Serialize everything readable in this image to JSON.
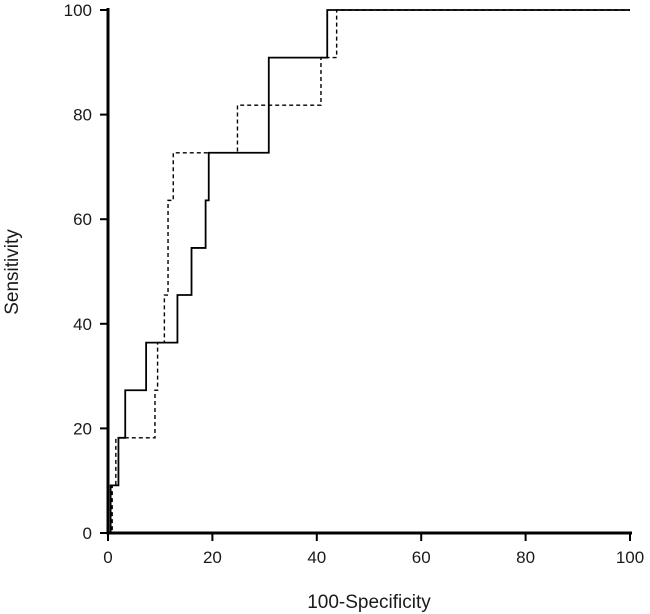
{
  "chart_data": {
    "type": "line",
    "title": "",
    "xlabel": "100-Specificity",
    "ylabel": "Sensitivity",
    "xlim": [
      0,
      100
    ],
    "ylim": [
      0,
      100
    ],
    "x_ticks": [
      "0",
      "20",
      "40",
      "60",
      "80",
      "100"
    ],
    "y_ticks": [
      "0",
      "20",
      "40",
      "60",
      "80",
      "100"
    ],
    "grid": false,
    "legend": "none",
    "series": [
      {
        "style": "solid",
        "color": "#000000",
        "x": [
          0,
          0.5,
          0.5,
          2,
          2,
          3.3,
          3.3,
          7.3,
          7.3,
          13.3,
          13.3,
          16,
          16,
          18.7,
          18.7,
          19.3,
          19.3,
          30.8,
          30.8,
          42,
          42,
          100
        ],
        "y": [
          0,
          0,
          9.1,
          9.1,
          18.2,
          18.2,
          27.3,
          27.3,
          36.4,
          36.4,
          45.5,
          45.5,
          54.5,
          54.5,
          63.6,
          63.6,
          72.7,
          72.7,
          90.9,
          90.9,
          100,
          100
        ]
      },
      {
        "style": "dashed",
        "color": "#000000",
        "x": [
          0,
          0.8,
          0.8,
          1.5,
          1.5,
          2.5,
          2.5,
          9,
          9,
          9.5,
          9.5,
          10.8,
          10.8,
          11.5,
          11.5,
          12.5,
          12.5,
          24.8,
          24.8,
          40.8,
          40.8,
          43.8,
          43.8,
          100
        ],
        "y": [
          0,
          0,
          9.1,
          9.1,
          18.2,
          18.2,
          18.2,
          18.2,
          27.3,
          27.3,
          36.4,
          36.4,
          45.5,
          45.5,
          63.6,
          63.6,
          72.7,
          72.7,
          81.8,
          81.8,
          90.9,
          90.9,
          100,
          100
        ]
      }
    ]
  }
}
